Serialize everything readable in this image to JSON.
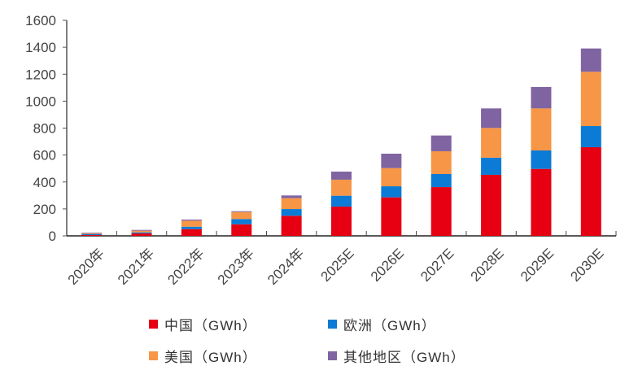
{
  "chart_data": {
    "type": "bar",
    "stacked": true,
    "title": "",
    "xlabel": "",
    "ylabel": "",
    "ylim": [
      0,
      1600
    ],
    "yticks": [
      0,
      200,
      400,
      600,
      800,
      1000,
      1200,
      1400,
      1600
    ],
    "grid": false,
    "legend_position": "bottom",
    "categories": [
      "2020年",
      "2021年",
      "2022年",
      "2023年",
      "2024年",
      "2025E",
      "2026E",
      "2027E",
      "2028E",
      "2029E",
      "2030E"
    ],
    "series": [
      {
        "name": "中国（GWh）",
        "color": "#E60012",
        "values": [
          6,
          18,
          50,
          86,
          149,
          217,
          286,
          362,
          453,
          497,
          658
        ]
      },
      {
        "name": "欧洲（GWh）",
        "color": "#0C7BD6",
        "values": [
          8,
          8,
          18,
          39,
          50,
          81,
          82,
          97,
          127,
          137,
          157
        ]
      },
      {
        "name": "美国（GWh）",
        "color": "#F79646",
        "values": [
          6,
          12,
          45,
          52,
          81,
          119,
          135,
          169,
          221,
          312,
          403
        ]
      },
      {
        "name": "其他地区（GWh）",
        "color": "#8064A2",
        "values": [
          4,
          6,
          8,
          6,
          20,
          60,
          107,
          117,
          145,
          159,
          173
        ]
      }
    ]
  }
}
